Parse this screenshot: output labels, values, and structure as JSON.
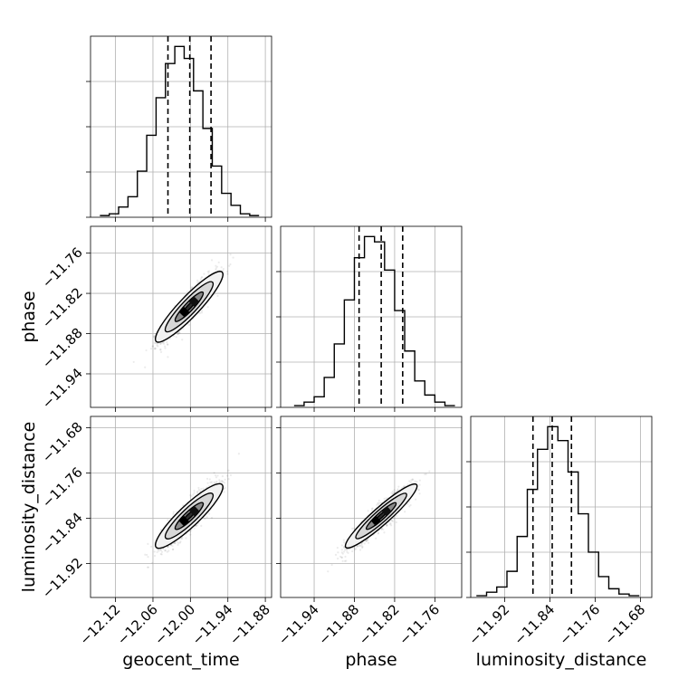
{
  "chart_data": {
    "type": "corner",
    "parameters": [
      "geocent_time",
      "phase",
      "luminosity_distance"
    ],
    "axes": {
      "geocent_time": {
        "label": "geocent_time",
        "range": [
          -12.16,
          -11.87
        ],
        "ticks": [
          -12.12,
          -12.06,
          -12.0,
          -11.94,
          -11.88
        ],
        "tick_labels": [
          "−12.12",
          "−12.06",
          "−12.00",
          "−11.94",
          "−11.88"
        ]
      },
      "phase": {
        "label": "phase",
        "range": [
          -11.99,
          -11.72
        ],
        "ticks": [
          -11.94,
          -11.88,
          -11.82,
          -11.76
        ],
        "tick_labels": [
          "−11.94",
          "−11.88",
          "−11.82",
          "−11.76"
        ]
      },
      "luminosity_distance": {
        "label": "luminosity_distance",
        "range": [
          -11.98,
          -11.66
        ],
        "ticks": [
          -11.92,
          -11.84,
          -11.76,
          -11.68
        ],
        "tick_labels": [
          "−11.92",
          "−11.84",
          "−11.76",
          "−11.68"
        ]
      }
    },
    "histograms": {
      "geocent_time": {
        "bin_edges": [
          -12.145,
          -12.13,
          -12.115,
          -12.1,
          -12.085,
          -12.07,
          -12.055,
          -12.04,
          -12.025,
          -12.01,
          -11.995,
          -11.98,
          -11.965,
          -11.95,
          -11.935,
          -11.92,
          -11.905,
          -11.89
        ],
        "counts": [
          1,
          2,
          6,
          12,
          27,
          48,
          70,
          90,
          100,
          93,
          74,
          52,
          30,
          14,
          7,
          2,
          1
        ],
        "quantiles": [
          -12.036,
          -12.001,
          -11.967
        ]
      },
      "phase": {
        "bin_edges": [
          -11.97,
          -11.955,
          -11.94,
          -11.925,
          -11.91,
          -11.895,
          -11.88,
          -11.865,
          -11.85,
          -11.835,
          -11.82,
          -11.805,
          -11.79,
          -11.775,
          -11.76,
          -11.745,
          -11.73
        ],
        "counts": [
          1,
          3,
          6,
          17,
          36,
          61,
          85,
          97,
          94,
          78,
          55,
          32,
          15,
          7,
          3,
          1
        ],
        "quantiles": [
          -11.873,
          -11.84,
          -11.808
        ]
      },
      "luminosity_distance": {
        "bin_edges": [
          -11.97,
          -11.952,
          -11.934,
          -11.916,
          -11.898,
          -11.88,
          -11.862,
          -11.844,
          -11.826,
          -11.808,
          -11.79,
          -11.772,
          -11.754,
          -11.736,
          -11.718,
          -11.7,
          -11.682
        ],
        "counts": [
          1,
          3,
          6,
          15,
          35,
          62,
          85,
          98,
          90,
          72,
          48,
          26,
          12,
          5,
          2,
          1
        ],
        "quantiles": [
          -11.87,
          -11.836,
          -11.802
        ]
      }
    },
    "contours": {
      "phase_vs_geocent_time": {
        "x": "geocent_time",
        "y": "phase",
        "center": [
          -12.002,
          -11.84
        ],
        "slope": 0.98,
        "sigma_x": 0.022,
        "sigma_y_perp": 0.0045
      },
      "luminosity_distance_vs_geocent_time": {
        "x": "geocent_time",
        "y": "luminosity_distance",
        "center": [
          -12.002,
          -11.836
        ],
        "slope": 1.05,
        "sigma_x": 0.022,
        "sigma_y_perp": 0.0055
      },
      "luminosity_distance_vs_phase": {
        "x": "phase",
        "y": "luminosity_distance",
        "center": [
          -11.84,
          -11.836
        ],
        "slope": 1.05,
        "sigma_x": 0.022,
        "sigma_y_perp": 0.0045
      }
    },
    "grid": true
  }
}
